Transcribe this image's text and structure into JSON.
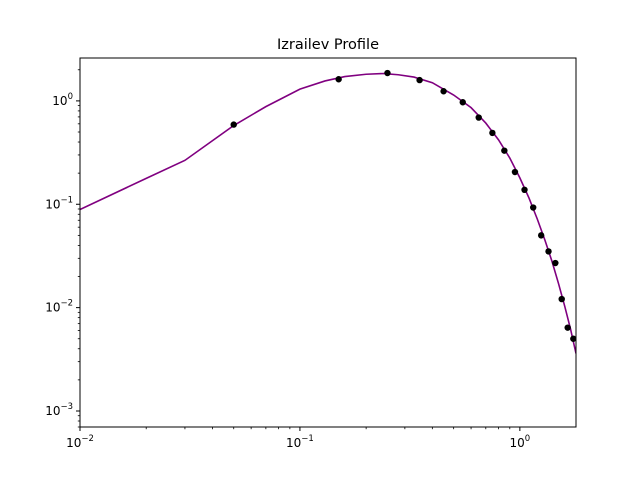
{
  "chart_data": {
    "type": "scatter",
    "title": "Izrailev  Profile",
    "xlabel": "",
    "ylabel": "",
    "xscale": "log",
    "yscale": "log",
    "xlim": [
      0.01,
      1.8
    ],
    "ylim": [
      0.0007,
      2.6
    ],
    "grid": false,
    "legend": "none",
    "x_ticks": [
      {
        "value": 0.01,
        "base": "10",
        "exp": "−2"
      },
      {
        "value": 0.1,
        "base": "10",
        "exp": "−1"
      },
      {
        "value": 1,
        "base": "10",
        "exp": "0"
      }
    ],
    "y_ticks": [
      {
        "value": 0.001,
        "base": "10",
        "exp": "−3"
      },
      {
        "value": 0.01,
        "base": "10",
        "exp": "−2"
      },
      {
        "value": 0.1,
        "base": "10",
        "exp": "−1"
      },
      {
        "value": 1,
        "base": "10",
        "exp": "0"
      }
    ],
    "series": [
      {
        "kind": "points",
        "color": "#000000",
        "x": [
          0.05,
          0.15,
          0.25,
          0.35,
          0.45,
          0.55,
          0.65,
          0.75,
          0.85,
          0.95,
          1.05,
          1.15,
          1.25,
          1.35,
          1.45,
          1.55,
          1.65,
          1.75
        ],
        "y": [
          0.59,
          1.62,
          1.86,
          1.59,
          1.24,
          0.97,
          0.69,
          0.49,
          0.33,
          0.205,
          0.138,
          0.093,
          0.05,
          0.035,
          0.027,
          0.0121,
          0.0064,
          0.005
        ]
      },
      {
        "kind": "line",
        "color": "#800080",
        "x": [
          0.01,
          0.02,
          0.03,
          0.05,
          0.07,
          0.1,
          0.13,
          0.16,
          0.2,
          0.24,
          0.28,
          0.33,
          0.4,
          0.5,
          0.6,
          0.7,
          0.8,
          0.9,
          1.0,
          1.1,
          1.2,
          1.3,
          1.4,
          1.5,
          1.6,
          1.7,
          1.8
        ],
        "y": [
          0.089,
          0.178,
          0.266,
          0.578,
          0.88,
          1.3,
          1.56,
          1.72,
          1.81,
          1.84,
          1.79,
          1.7,
          1.5,
          1.14,
          0.86,
          0.61,
          0.42,
          0.28,
          0.18,
          0.115,
          0.072,
          0.045,
          0.028,
          0.017,
          0.0103,
          0.0062,
          0.0036
        ]
      }
    ]
  }
}
